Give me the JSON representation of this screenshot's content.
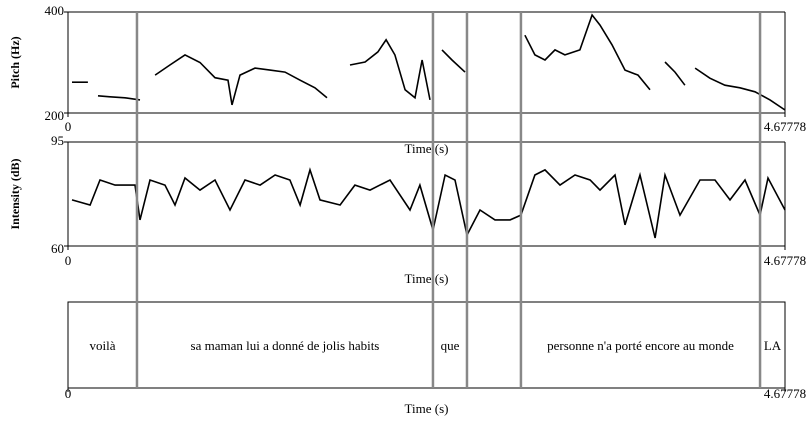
{
  "chart_data": [
    {
      "type": "line",
      "ylabel": "Pitch (Hz)",
      "xlabel": "Time (s)",
      "xlim": [
        0,
        4.67778
      ],
      "xticks": [
        0,
        4.67778
      ],
      "ylim": [
        200,
        400
      ],
      "yticks": [
        200,
        400
      ],
      "color": "#000000",
      "x": [
        0.026,
        0.078,
        0.13,
        0.17,
        0.196,
        0.274,
        0.372,
        0.47,
        0.52,
        0.568,
        0.665,
        0.763,
        0.861,
        0.959,
        1.044,
        1.07,
        1.122,
        1.22,
        1.318,
        1.416,
        1.514,
        1.611,
        1.69,
        1.8,
        1.84,
        1.938,
        2.022,
        2.075,
        2.133,
        2.199,
        2.264,
        2.31,
        2.362,
        2.4,
        2.44,
        2.505,
        2.59,
        2.75,
        2.981,
        3.046,
        3.112,
        3.177,
        3.242,
        3.34,
        3.419,
        3.471,
        3.549,
        3.634,
        3.719,
        3.797,
        3.85,
        3.895,
        3.96,
        4.025,
        4.06,
        4.091,
        4.188,
        4.286,
        4.384,
        4.482,
        4.58,
        4.678
      ],
      "values": [
        261,
        261,
        261,
        null,
        234,
        232,
        230,
        226,
        null,
        275,
        295,
        315,
        300,
        270,
        265,
        216,
        275,
        289,
        285,
        281,
        265,
        250,
        230,
        null,
        295,
        301,
        321,
        345,
        315,
        246,
        230,
        305,
        226,
        null,
        325,
        305,
        281,
        null,
        354,
        315,
        305,
        325,
        315,
        325,
        394,
        374,
        335,
        285,
        275,
        246,
        null,
        301,
        281,
        255,
        null,
        289,
        269,
        255,
        250,
        242,
        226,
        206
      ]
    },
    {
      "type": "line",
      "ylabel": "Intensity (dB)",
      "xlabel": "Time (s)",
      "xlim": [
        0,
        4.67778
      ],
      "xticks": [
        0,
        4.67778
      ],
      "ylim": [
        60,
        95
      ],
      "yticks": [
        60,
        95
      ],
      "color": "#000000",
      "x": [
        0.026,
        0.144,
        0.209,
        0.307,
        0.437,
        0.47,
        0.535,
        0.633,
        0.698,
        0.763,
        0.861,
        0.959,
        1.057,
        1.155,
        1.253,
        1.351,
        1.448,
        1.514,
        1.579,
        1.644,
        1.775,
        1.872,
        1.97,
        2.101,
        2.231,
        2.296,
        2.381,
        2.46,
        2.525,
        2.603,
        2.688,
        2.786,
        2.884,
        2.955,
        3.046,
        3.112,
        3.21,
        3.308,
        3.406,
        3.471,
        3.569,
        3.634,
        3.732,
        3.83,
        3.895,
        3.993,
        4.123,
        4.221,
        4.319,
        4.417,
        4.515,
        4.567,
        4.678
      ],
      "values": [
        75.5,
        73.8,
        82.2,
        80.5,
        80.5,
        68.8,
        82.2,
        80.5,
        73.8,
        82.9,
        78.8,
        82.2,
        72.1,
        82.2,
        80.5,
        83.9,
        82.2,
        73.8,
        85.6,
        75.5,
        73.8,
        80.5,
        78.8,
        82.2,
        72.1,
        80.5,
        65.4,
        83.9,
        82.2,
        63.7,
        72.1,
        68.8,
        68.8,
        70.4,
        83.9,
        85.6,
        80.5,
        83.9,
        82.2,
        78.8,
        83.9,
        67.1,
        83.9,
        62.7,
        83.9,
        70.4,
        82.2,
        82.2,
        75.5,
        82.2,
        70.4,
        82.9,
        72.1
      ]
    },
    {
      "type": "textgrid",
      "xlabel": "Time (s)",
      "xlim": [
        0,
        4.67778
      ],
      "xticks": [
        0,
        4.67778
      ],
      "boundaries": [
        0.45,
        2.381,
        2.603,
        2.955,
        4.515
      ],
      "labels": [
        "voilà",
        "sa maman lui a donné de jolis habits",
        "que",
        null,
        "personne n'a porté encore au monde",
        "LA"
      ]
    }
  ]
}
